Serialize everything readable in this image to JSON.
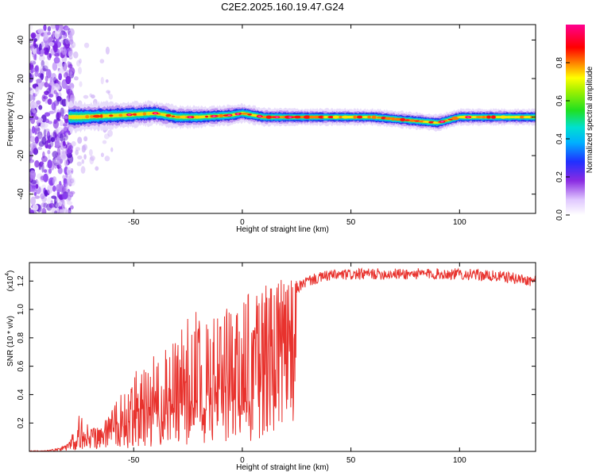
{
  "figure": {
    "title": "C2E2.2025.160.19.47.G24"
  },
  "chart_data": [
    {
      "type": "heatmap",
      "title": "C2E2.2025.160.19.47.G24",
      "xlabel": "Height of straight line (km)",
      "ylabel": "Frequency (Hz)",
      "xlim": [
        -98,
        135
      ],
      "ylim": [
        -50,
        48
      ],
      "x_ticks": [
        "-50",
        "0",
        "50",
        "100"
      ],
      "x_tick_values": [
        -50,
        0,
        50,
        100
      ],
      "y_ticks": [
        "-40",
        "-20",
        "0",
        "20",
        "40"
      ],
      "y_tick_values": [
        -40,
        -20,
        0,
        20,
        40
      ],
      "colorbar": {
        "label": "Normalized spectral amplitude",
        "ticks": [
          "0.0",
          "0.2",
          "0.4",
          "0.6",
          "0.8"
        ],
        "tick_values": [
          0.0,
          0.2,
          0.4,
          0.6,
          0.8
        ],
        "range": [
          0,
          1
        ],
        "colormap": "rainbow (white-purple-blue-cyan-green-yellow-red-magenta)"
      },
      "grid": false,
      "description_points": {
        "noise_region_x": [
          -98,
          -80
        ],
        "ridge_x": [
          -80,
          135
        ],
        "ridge_frequency": [
          [
            -75,
            0
          ],
          [
            -55,
            1
          ],
          [
            -40,
            2
          ],
          [
            -30,
            0
          ],
          [
            -20,
            0
          ],
          [
            -5,
            1
          ],
          [
            0,
            2
          ],
          [
            10,
            0
          ],
          [
            30,
            0
          ],
          [
            60,
            0
          ],
          [
            90,
            -3
          ],
          [
            100,
            0
          ],
          [
            135,
            0
          ]
        ],
        "ridge_halfwidth": [
          [
            -80,
            4
          ],
          [
            -60,
            3.5
          ],
          [
            -30,
            3
          ],
          [
            0,
            2.5
          ],
          [
            30,
            2.2
          ],
          [
            60,
            2.2
          ],
          [
            100,
            2.2
          ],
          [
            135,
            2.2
          ]
        ]
      }
    },
    {
      "type": "line",
      "xlabel": "Height of straight line (km)",
      "ylabel": "SNR (10 * v/v)",
      "yscale_note": "(x10",
      "yscale_exp": "4",
      "xlim": [
        -98,
        135
      ],
      "ylim": [
        0,
        1.33
      ],
      "x_ticks": [
        "-50",
        "0",
        "50",
        "100"
      ],
      "x_tick_values": [
        -50,
        0,
        50,
        100
      ],
      "y_ticks": [
        "0.2",
        "0.4",
        "0.6",
        "0.8",
        "1.0",
        "1.2"
      ],
      "y_tick_values": [
        0.2,
        0.4,
        0.6,
        0.8,
        1.0,
        1.2
      ],
      "grid": false,
      "series": [
        {
          "color": "#e8322d",
          "baseline": [
            [
              -98,
              0.0
            ],
            [
              -90,
              0.005
            ],
            [
              -84,
              0.02
            ],
            [
              -80,
              0.05
            ],
            [
              -75,
              0.1
            ],
            [
              -72,
              0.15
            ],
            [
              -65,
              0.15
            ],
            [
              -55,
              0.2
            ],
            [
              -45,
              0.25
            ],
            [
              -35,
              0.3
            ],
            [
              -25,
              0.35
            ],
            [
              -15,
              0.45
            ],
            [
              -5,
              0.55
            ],
            [
              5,
              0.7
            ],
            [
              15,
              0.85
            ],
            [
              20,
              1.0
            ],
            [
              25,
              1.15
            ],
            [
              30,
              1.2
            ],
            [
              40,
              1.24
            ],
            [
              60,
              1.25
            ],
            [
              80,
              1.25
            ],
            [
              100,
              1.25
            ],
            [
              120,
              1.23
            ],
            [
              135,
              1.2
            ]
          ],
          "envelope": [
            [
              -98,
              0.0
            ],
            [
              -85,
              0.01
            ],
            [
              -80,
              0.05
            ],
            [
              -74,
              0.3
            ],
            [
              -70,
              0.15
            ],
            [
              -62,
              0.25
            ],
            [
              -50,
              0.55
            ],
            [
              -40,
              0.7
            ],
            [
              -30,
              0.8
            ],
            [
              -23,
              1.02
            ],
            [
              -15,
              0.95
            ],
            [
              -5,
              1.05
            ],
            [
              5,
              1.15
            ],
            [
              15,
              1.22
            ],
            [
              20,
              1.2
            ],
            [
              28,
              1.3
            ],
            [
              60,
              1.3
            ],
            [
              100,
              1.31
            ],
            [
              135,
              1.25
            ]
          ]
        }
      ]
    }
  ]
}
